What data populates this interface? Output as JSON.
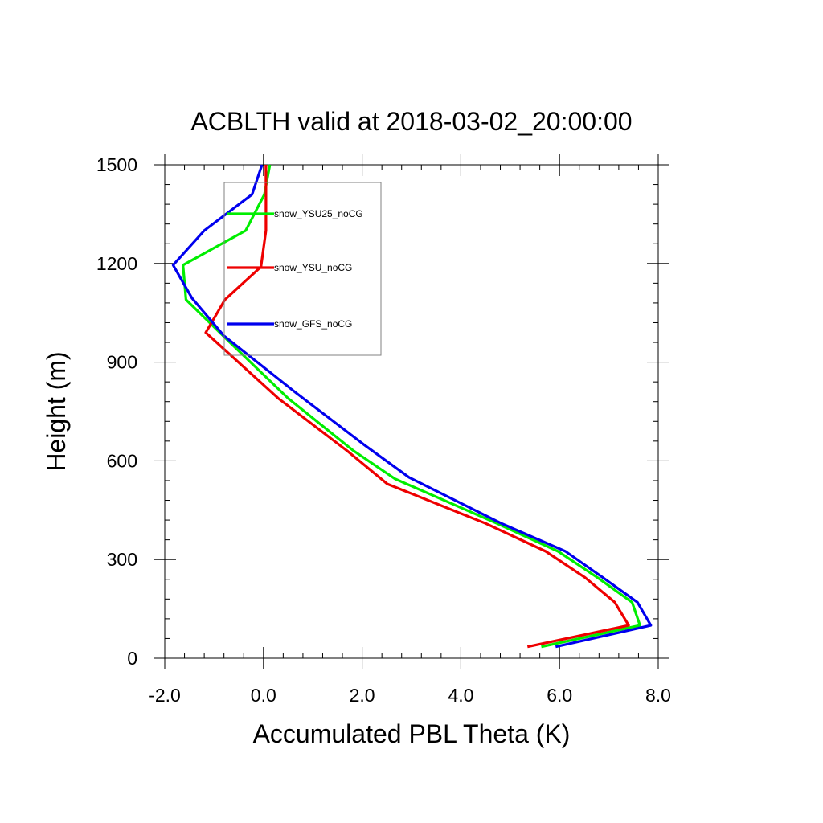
{
  "chart_data": {
    "type": "line",
    "title": "ACBLTH valid at 2018-03-02_20:00:00",
    "xlabel": "Accumulated PBL Theta (K)",
    "ylabel": "Height (m)",
    "xlim": [
      -2.0,
      8.0
    ],
    "ylim": [
      0,
      1500
    ],
    "xticks": [
      "-2.0",
      "0.0",
      "2.0",
      "4.0",
      "6.0",
      "8.0"
    ],
    "yticks": [
      "0",
      "300",
      "600",
      "900",
      "1200",
      "1500"
    ],
    "grid": false,
    "legend_position": "upper-left",
    "series": [
      {
        "name": "snow_YSU25_noCG",
        "color": "#00ee00",
        "points": [
          [
            5.63,
            35
          ],
          [
            7.63,
            100
          ],
          [
            7.47,
            170
          ],
          [
            6.77,
            245
          ],
          [
            5.97,
            325
          ],
          [
            4.73,
            410
          ],
          [
            2.67,
            545
          ],
          [
            1.83,
            630
          ],
          [
            0.5,
            790
          ],
          [
            -0.68,
            960
          ],
          [
            -1.57,
            1090
          ],
          [
            -1.63,
            1195
          ],
          [
            -0.36,
            1300
          ],
          [
            0.02,
            1410
          ],
          [
            0.13,
            1500
          ]
        ]
      },
      {
        "name": "snow_YSU_noCG",
        "color": "#ee0000",
        "points": [
          [
            5.35,
            35
          ],
          [
            7.4,
            100
          ],
          [
            7.12,
            170
          ],
          [
            6.52,
            245
          ],
          [
            5.72,
            325
          ],
          [
            4.5,
            410
          ],
          [
            2.51,
            530
          ],
          [
            1.7,
            630
          ],
          [
            0.3,
            790
          ],
          [
            -1.17,
            990
          ],
          [
            -0.78,
            1090
          ],
          [
            -0.05,
            1190
          ],
          [
            0.05,
            1300
          ],
          [
            0.05,
            1410
          ],
          [
            0.05,
            1500
          ]
        ]
      },
      {
        "name": "snow_GFS_noCG",
        "color": "#0000ee",
        "points": [
          [
            5.92,
            35
          ],
          [
            7.85,
            100
          ],
          [
            7.58,
            170
          ],
          [
            6.88,
            245
          ],
          [
            6.12,
            325
          ],
          [
            4.82,
            410
          ],
          [
            2.95,
            550
          ],
          [
            2.03,
            650
          ],
          [
            0.63,
            810
          ],
          [
            -0.8,
            980
          ],
          [
            -1.45,
            1095
          ],
          [
            -1.83,
            1195
          ],
          [
            -1.2,
            1300
          ],
          [
            -0.23,
            1410
          ],
          [
            -0.03,
            1500
          ]
        ]
      }
    ]
  }
}
